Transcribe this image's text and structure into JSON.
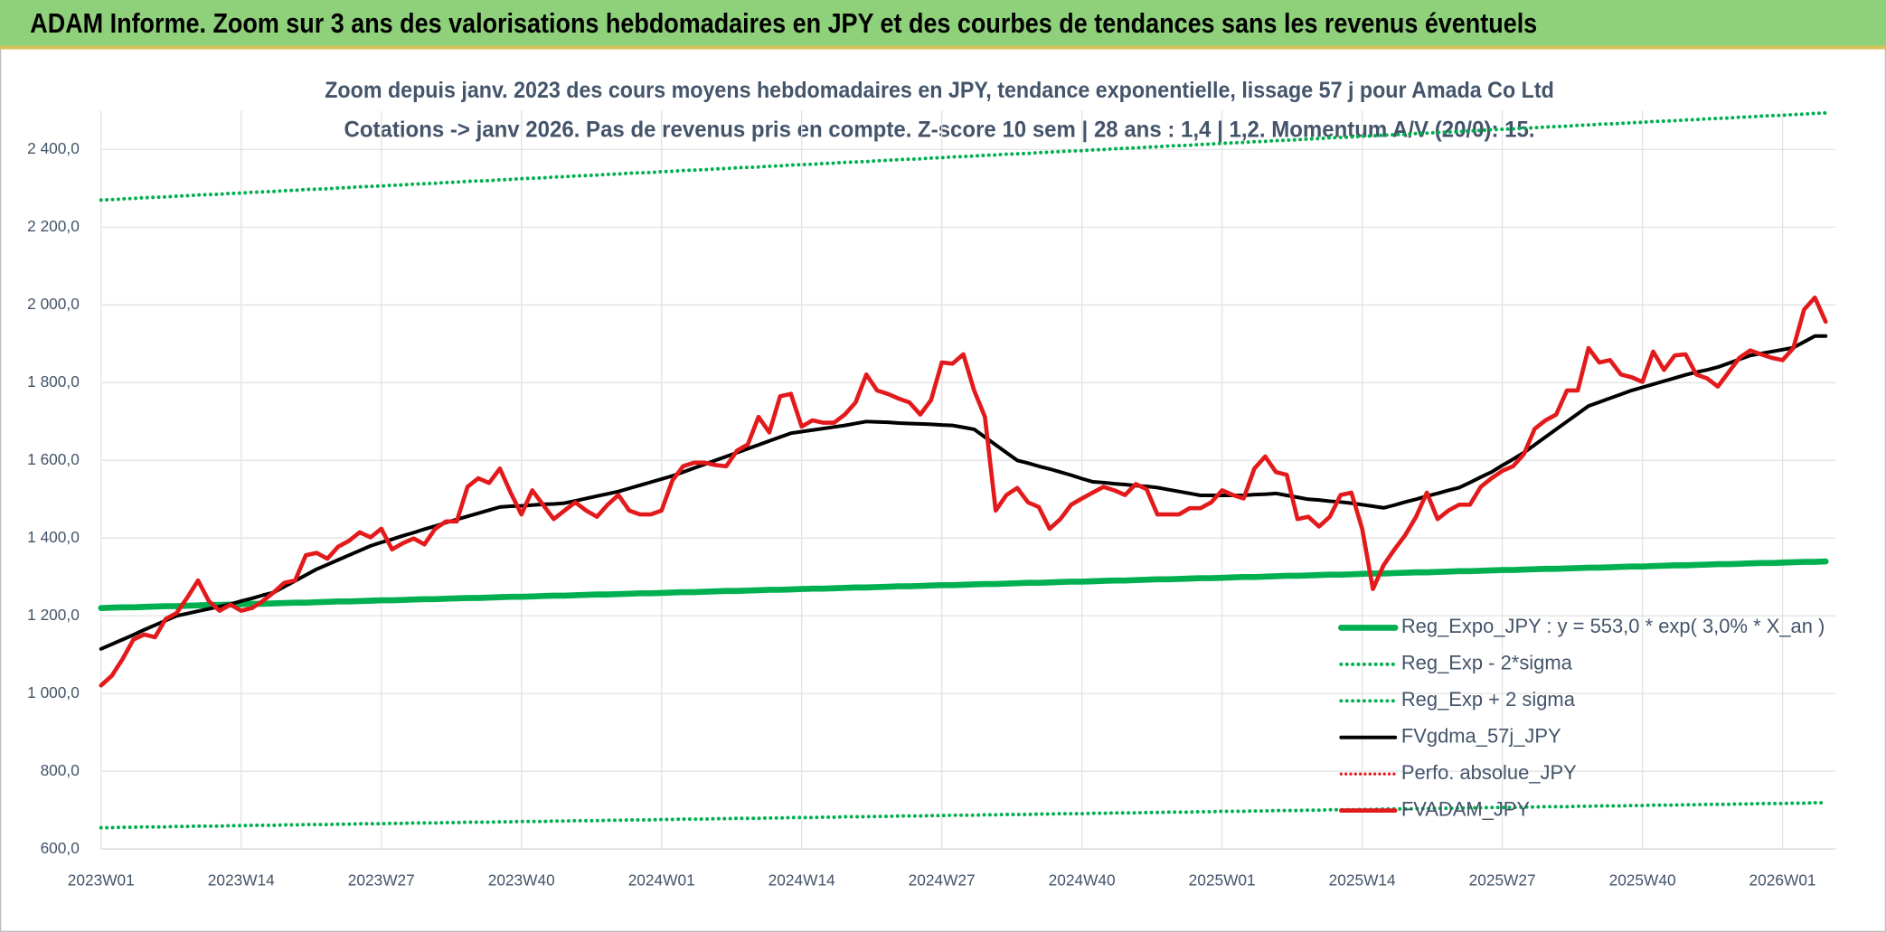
{
  "chart_data": {
    "type": "line",
    "title": "ADAM Informe. Zoom sur 3 ans des valorisations hebdomadaires en JPY et des courbes de tendances sans les revenus éventuels",
    "subtitle": [
      "Zoom depuis janv. 2023 des cours moyens hebdomadaires en JPY, tendance exponentielle, lissage 57 j pour Amada Co Ltd",
      "Cotations -> janv 2026. Pas de revenus pris en compte. Z-score 10 sem | 28 ans : 1,4 | 1,2. Momentum A/V (20/0): 15."
    ],
    "categories": [
      "2023W01",
      null,
      null,
      null,
      null,
      null,
      null,
      null,
      null,
      null,
      null,
      null,
      null,
      "2023W14",
      null,
      null,
      null,
      null,
      null,
      null,
      null,
      null,
      null,
      null,
      null,
      null,
      "2023W27",
      null,
      null,
      null,
      null,
      null,
      null,
      null,
      null,
      null,
      null,
      null,
      null,
      "2023W40",
      null,
      null,
      null,
      null,
      null,
      null,
      null,
      null,
      null,
      null,
      null,
      null,
      "2024W01",
      null,
      null,
      null,
      null,
      null,
      null,
      null,
      null,
      null,
      null,
      null,
      null,
      "2024W14",
      null,
      null,
      null,
      null,
      null,
      null,
      null,
      null,
      null,
      null,
      null,
      null,
      "2024W27",
      null,
      null,
      null,
      null,
      null,
      null,
      null,
      null,
      null,
      null,
      null,
      null,
      "2024W40",
      null,
      null,
      null,
      null,
      null,
      null,
      null,
      null,
      null,
      null,
      null,
      null,
      "2025W01",
      null,
      null,
      null,
      null,
      null,
      null,
      null,
      null,
      null,
      null,
      null,
      null,
      "2025W14",
      null,
      null,
      null,
      null,
      null,
      null,
      null,
      null,
      null,
      null,
      null,
      null,
      "2025W27",
      null,
      null,
      null,
      null,
      null,
      null,
      null,
      null,
      null,
      null,
      null,
      null,
      "2025W40",
      null,
      null,
      null,
      null,
      null,
      null,
      null,
      null,
      null,
      null,
      null,
      null,
      "2026W01",
      null,
      null,
      null,
      null
    ],
    "ylim": [
      600,
      2500
    ],
    "yticks": [
      {
        "value": 600,
        "label": "600,0"
      },
      {
        "value": 800,
        "label": "800,0"
      },
      {
        "value": 1000,
        "label": "1 000,0"
      },
      {
        "value": 1200,
        "label": "1 200,0"
      },
      {
        "value": 1400,
        "label": "1 400,0"
      },
      {
        "value": 1600,
        "label": "1 600,0"
      },
      {
        "value": 1800,
        "label": "1 800,0"
      },
      {
        "value": 2000,
        "label": "2 000,0"
      },
      {
        "value": 2200,
        "label": "2 200,0"
      },
      {
        "value": 2400,
        "label": "2 400,0"
      }
    ],
    "grid": true,
    "legend": "lower right",
    "series": [
      {
        "name": "Reg_Expo_JPY : y = 553,0 * exp( 3,0% *  X_an )",
        "color": "#00b050",
        "style": "solid",
        "values": [
          1220,
          1221,
          1222,
          1222,
          1223,
          1224,
          1225,
          1225,
          1226,
          1227,
          1228,
          1228,
          1229,
          1230,
          1231,
          1231,
          1232,
          1233,
          1234,
          1234,
          1235,
          1236,
          1237,
          1237,
          1238,
          1239,
          1240,
          1240,
          1241,
          1242,
          1243,
          1243,
          1244,
          1245,
          1246,
          1246,
          1247,
          1248,
          1249,
          1249,
          1250,
          1251,
          1252,
          1252,
          1253,
          1254,
          1255,
          1255,
          1256,
          1257,
          1258,
          1258,
          1259,
          1260,
          1261,
          1261,
          1262,
          1263,
          1264,
          1264,
          1265,
          1266,
          1267,
          1267,
          1268,
          1269,
          1270,
          1270,
          1271,
          1272,
          1273,
          1273,
          1274,
          1275,
          1276,
          1276,
          1277,
          1278,
          1279,
          1279,
          1280,
          1281,
          1282,
          1282,
          1283,
          1284,
          1285,
          1285,
          1286,
          1287,
          1288,
          1288,
          1289,
          1290,
          1291,
          1291,
          1292,
          1293,
          1294,
          1294,
          1295,
          1296,
          1297,
          1297,
          1298,
          1299,
          1300,
          1300,
          1301,
          1302,
          1303,
          1303,
          1304,
          1305,
          1306,
          1306,
          1307,
          1308,
          1309,
          1309,
          1310,
          1311,
          1312,
          1312,
          1313,
          1314,
          1315,
          1315,
          1316,
          1317,
          1318,
          1318,
          1319,
          1320,
          1321,
          1321,
          1322,
          1323,
          1324,
          1324,
          1325,
          1326,
          1327,
          1327,
          1328,
          1329,
          1330,
          1330,
          1331,
          1332,
          1333,
          1333,
          1334,
          1335,
          1336,
          1336,
          1337,
          1338,
          1339,
          1339,
          1340
        ]
      },
      {
        "name": "Reg_Exp - 2*sigma",
        "color": "#00b050",
        "style": "dotted",
        "values": [
          655,
          655,
          656,
          656,
          657,
          657,
          657,
          658,
          658,
          659,
          659,
          659,
          660,
          660,
          661,
          661,
          661,
          662,
          662,
          663,
          663,
          663,
          664,
          664,
          665,
          665,
          665,
          666,
          666,
          667,
          667,
          667,
          668,
          668,
          669,
          669,
          669,
          670,
          670,
          671,
          671,
          671,
          672,
          672,
          673,
          673,
          673,
          674,
          674,
          675,
          675,
          675,
          676,
          676,
          677,
          677,
          677,
          678,
          678,
          679,
          679,
          679,
          680,
          680,
          681,
          681,
          681,
          682,
          682,
          683,
          683,
          683,
          684,
          684,
          685,
          685,
          685,
          686,
          686,
          687,
          687,
          687,
          688,
          688,
          689,
          689,
          689,
          690,
          690,
          691,
          691,
          691,
          692,
          692,
          693,
          693,
          693,
          694,
          694,
          695,
          695,
          695,
          696,
          696,
          697,
          697,
          697,
          698,
          698,
          699,
          699,
          699,
          700,
          700,
          701,
          701,
          701,
          702,
          702,
          703,
          703,
          703,
          704,
          704,
          705,
          705,
          705,
          706,
          706,
          707,
          707,
          707,
          708,
          708,
          709,
          709,
          709,
          710,
          710,
          711,
          711,
          711,
          712,
          712,
          713,
          713,
          713,
          714,
          714,
          715,
          715,
          715,
          716,
          716,
          717,
          717,
          717,
          718,
          718,
          719,
          719
        ]
      },
      {
        "name": "Reg_Exp + 2 sigma",
        "color": "#00b050",
        "style": "dotted",
        "values": [
          2270,
          2271,
          2273,
          2274,
          2276,
          2277,
          2278,
          2280,
          2281,
          2283,
          2284,
          2285,
          2287,
          2288,
          2290,
          2291,
          2292,
          2294,
          2295,
          2297,
          2298,
          2299,
          2301,
          2302,
          2304,
          2305,
          2306,
          2308,
          2309,
          2311,
          2312,
          2313,
          2315,
          2316,
          2318,
          2319,
          2320,
          2322,
          2323,
          2325,
          2326,
          2327,
          2329,
          2330,
          2332,
          2333,
          2334,
          2336,
          2337,
          2339,
          2340,
          2341,
          2343,
          2344,
          2346,
          2347,
          2348,
          2350,
          2351,
          2353,
          2354,
          2355,
          2357,
          2358,
          2360,
          2361,
          2362,
          2364,
          2365,
          2367,
          2368,
          2369,
          2371,
          2372,
          2374,
          2375,
          2376,
          2378,
          2379,
          2381,
          2382,
          2383,
          2385,
          2386,
          2388,
          2389,
          2390,
          2392,
          2393,
          2395,
          2396,
          2397,
          2399,
          2400,
          2402,
          2403,
          2404,
          2406,
          2407,
          2409,
          2410,
          2411,
          2413,
          2414,
          2416,
          2417,
          2418,
          2420,
          2421,
          2423,
          2424,
          2425,
          2427,
          2428,
          2430,
          2431,
          2432,
          2434,
          2435,
          2437,
          2438,
          2439,
          2441,
          2442,
          2444,
          2445,
          2446,
          2448,
          2449,
          2451,
          2452,
          2453,
          2455,
          2456,
          2458,
          2459,
          2460,
          2462,
          2463,
          2465,
          2466,
          2467,
          2469,
          2470,
          2472,
          2473,
          2474,
          2476,
          2477,
          2479,
          2480,
          2481,
          2483,
          2484,
          2486,
          2487,
          2488,
          2490,
          2491,
          2493,
          2494
        ]
      },
      {
        "name": "FVgdma_57j_JPY",
        "color": "#000000",
        "style": "solid",
        "values": [
          1115,
          1127,
          1139,
          1151,
          1164,
          1176,
          1188,
          1200,
          1206,
          1212,
          1218,
          1224,
          1230,
          1238,
          1245,
          1253,
          1260,
          1275,
          1290,
          1305,
          1320,
          1332,
          1344,
          1356,
          1368,
          1380,
          1389,
          1397,
          1406,
          1414,
          1423,
          1431,
          1440,
          1448,
          1456,
          1464,
          1472,
          1480,
          1482,
          1483,
          1485,
          1487,
          1488,
          1490,
          1496,
          1502,
          1508,
          1514,
          1520,
          1528,
          1536,
          1544,
          1552,
          1560,
          1570,
          1580,
          1590,
          1600,
          1610,
          1620,
          1630,
          1640,
          1650,
          1660,
          1670,
          1674,
          1678,
          1682,
          1686,
          1690,
          1695,
          1700,
          1699,
          1698,
          1696,
          1695,
          1694,
          1693,
          1691,
          1690,
          1685,
          1680,
          1660,
          1640,
          1620,
          1600,
          1593,
          1585,
          1578,
          1570,
          1562,
          1553,
          1545,
          1543,
          1540,
          1538,
          1535,
          1533,
          1530,
          1525,
          1520,
          1515,
          1510,
          1510,
          1510,
          1510,
          1510,
          1512,
          1513,
          1515,
          1510,
          1505,
          1500,
          1498,
          1495,
          1493,
          1490,
          1486,
          1482,
          1478,
          1485,
          1493,
          1500,
          1508,
          1515,
          1523,
          1530,
          1543,
          1557,
          1570,
          1587,
          1603,
          1620,
          1640,
          1660,
          1680,
          1700,
          1720,
          1740,
          1750,
          1760,
          1770,
          1780,
          1788,
          1796,
          1804,
          1812,
          1820,
          1827,
          1833,
          1840,
          1850,
          1860,
          1870,
          1875,
          1880,
          1885,
          1890,
          1905,
          1920,
          1920
        ]
      },
      {
        "name": "Perfo. absolue_JPY",
        "color": "#e31a1c",
        "style": "dotted",
        "values": [
          null,
          null,
          null,
          null,
          null,
          null,
          null,
          null,
          null,
          null,
          null,
          null,
          null,
          null,
          null,
          null,
          null,
          null,
          null,
          null,
          null,
          null,
          null,
          null,
          null,
          null,
          null,
          null,
          null,
          null,
          null,
          null,
          null,
          null,
          null,
          null,
          null,
          null,
          null,
          null,
          null,
          null,
          null,
          null,
          null,
          null,
          null,
          null,
          null,
          null,
          null,
          null,
          null,
          null,
          null,
          null,
          null,
          null,
          null,
          null,
          null,
          null,
          null,
          null,
          null,
          null,
          null,
          null,
          null,
          null,
          null,
          null,
          null,
          null,
          null,
          null,
          null,
          null,
          null,
          null,
          null,
          null,
          null,
          null,
          null,
          null,
          null,
          null,
          null,
          null,
          null,
          null,
          null,
          null,
          null,
          null,
          null,
          null,
          null,
          null,
          null,
          null,
          null,
          null,
          null,
          null,
          null,
          null,
          null,
          null,
          null,
          null,
          null,
          null,
          null,
          null,
          null,
          null,
          null,
          null,
          null,
          null,
          null,
          null,
          null,
          null,
          null,
          null,
          null,
          null,
          null,
          null,
          null,
          null,
          null,
          null,
          null,
          null,
          null,
          null,
          null,
          null,
          null,
          null,
          null,
          null,
          null,
          null,
          null,
          null,
          null,
          null,
          null,
          null,
          null,
          null,
          null,
          null,
          null,
          null,
          null
        ]
      },
      {
        "name": "FVADAM_JPY",
        "color": "#e31a1c",
        "style": "solid",
        "values": [
          1021,
          1046,
          1089,
          1139,
          1152,
          1145,
          1192,
          1207,
          1247,
          1291,
          1238,
          1213,
          1229,
          1213,
          1220,
          1238,
          1260,
          1285,
          1291,
          1356,
          1362,
          1347,
          1378,
          1393,
          1415,
          1402,
          1424,
          1371,
          1387,
          1399,
          1384,
          1424,
          1443,
          1443,
          1532,
          1554,
          1542,
          1579,
          1517,
          1461,
          1523,
          1486,
          1449,
          1471,
          1492,
          1471,
          1455,
          1486,
          1511,
          1471,
          1461,
          1461,
          1471,
          1548,
          1585,
          1594,
          1594,
          1588,
          1585,
          1625,
          1641,
          1712,
          1672,
          1765,
          1771,
          1687,
          1703,
          1697,
          1697,
          1718,
          1749,
          1821,
          1780,
          1771,
          1759,
          1749,
          1718,
          1755,
          1852,
          1849,
          1873,
          1780,
          1712,
          1471,
          1511,
          1529,
          1492,
          1480,
          1424,
          1449,
          1486,
          1502,
          1517,
          1532,
          1523,
          1511,
          1539,
          1526,
          1461,
          1461,
          1461,
          1477,
          1477,
          1492,
          1523,
          1511,
          1502,
          1579,
          1610,
          1570,
          1563,
          1449,
          1455,
          1430,
          1455,
          1511,
          1517,
          1424,
          1269,
          1331,
          1371,
          1408,
          1455,
          1517,
          1449,
          1471,
          1486,
          1486,
          1532,
          1554,
          1573,
          1585,
          1616,
          1681,
          1703,
          1718,
          1780,
          1780,
          1889,
          1852,
          1858,
          1821,
          1814,
          1802,
          1880,
          1833,
          1870,
          1873,
          1821,
          1811,
          1790,
          1827,
          1864,
          1883,
          1873,
          1864,
          1858,
          1889,
          1988,
          2019,
          1957
        ]
      }
    ]
  }
}
